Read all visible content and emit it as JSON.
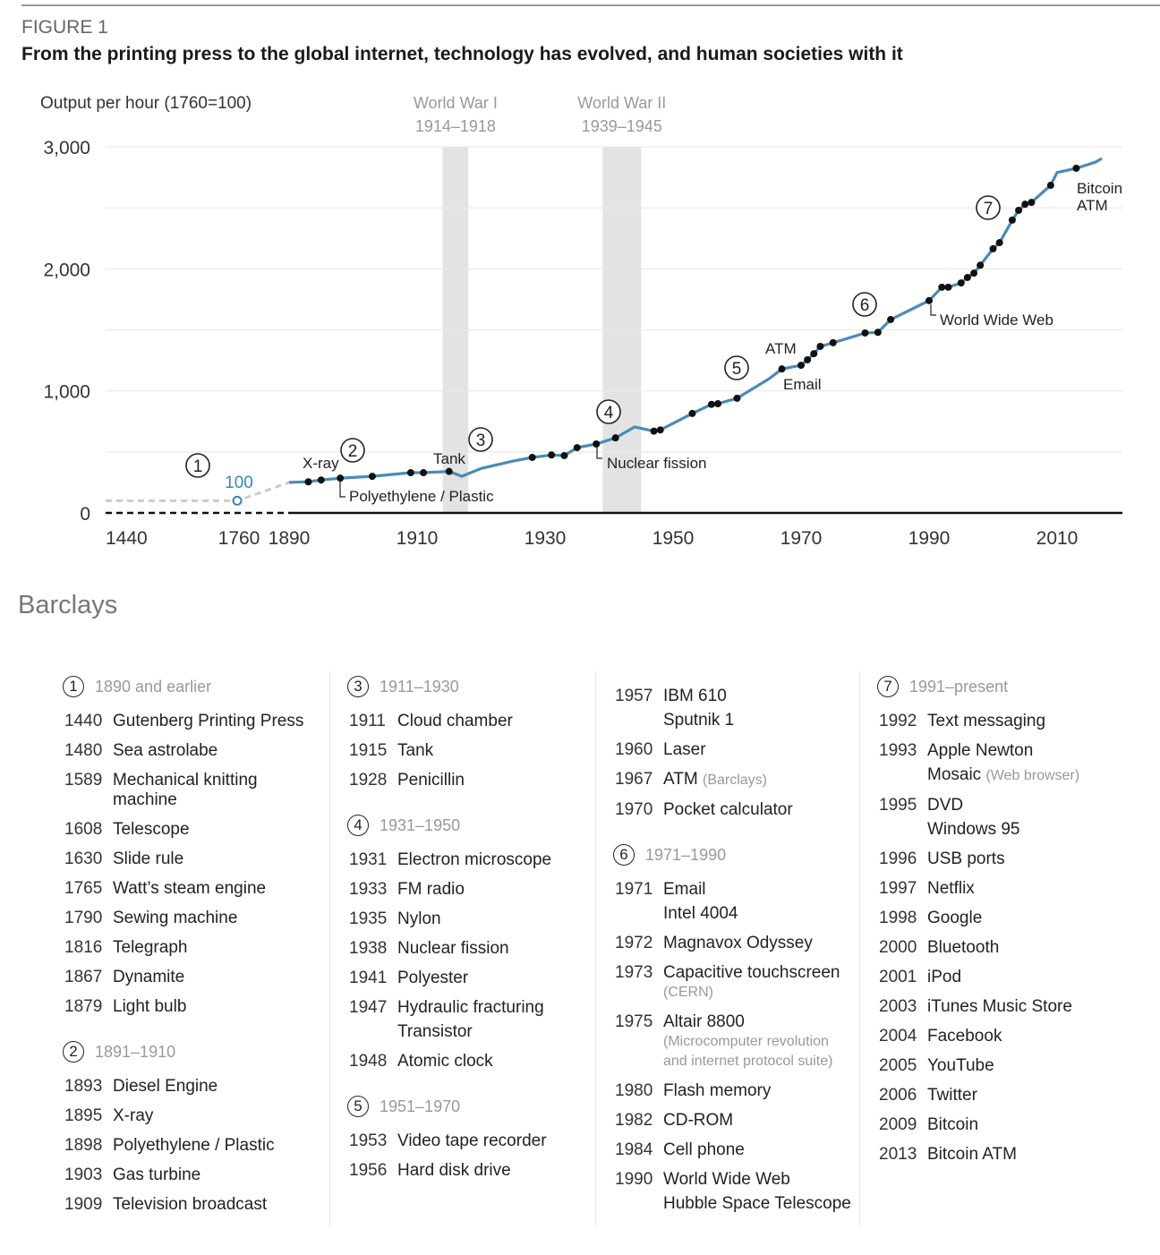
{
  "figure_label": "FIGURE 1",
  "title": "From the printing press to the global internet, technology has evolved, and human societies with it",
  "source": "Barclays",
  "chart_data": {
    "type": "line",
    "ylabel": "Output per hour (1760=100)",
    "ylim": [
      0,
      3000
    ],
    "yticks": [
      {
        "v": 0,
        "label": "0"
      },
      {
        "v": 1000,
        "label": "1,000"
      },
      {
        "v": 2000,
        "label": "2,000"
      },
      {
        "v": 3000,
        "label": "3,000"
      }
    ],
    "grid_step": 500,
    "grid": true,
    "xticks": [
      {
        "v": 1440,
        "label": "1440"
      },
      {
        "v": 1760,
        "label": "1760"
      },
      {
        "v": 1890,
        "label": "1890"
      },
      {
        "v": 1910,
        "label": "1910"
      },
      {
        "v": 1930,
        "label": "1930"
      },
      {
        "v": 1950,
        "label": "1950"
      },
      {
        "v": 1970,
        "label": "1970"
      },
      {
        "v": 1990,
        "label": "1990"
      },
      {
        "v": 2010,
        "label": "2010"
      }
    ],
    "x_axis_break": "compressed scale before 1890",
    "colors": {
      "line": "#4a8ab8",
      "pre_line": "#cccccc",
      "marker": "#111111",
      "band": "#e3e3e3",
      "base_label": "#3a86b8"
    },
    "bands": [
      {
        "name": "World War I",
        "period": "1914–1918",
        "from": 1914,
        "to": 1918
      },
      {
        "name": "World War II",
        "period": "1939–1945",
        "from": 1939,
        "to": 1945
      }
    ],
    "base_point": {
      "x": 1760,
      "y": 100,
      "label": "100"
    },
    "pre_series": [
      [
        1440,
        100
      ],
      [
        1760,
        100
      ],
      [
        1890,
        250
      ]
    ],
    "series": [
      [
        1890,
        250
      ],
      [
        1893,
        255
      ],
      [
        1895,
        270
      ],
      [
        1898,
        285
      ],
      [
        1903,
        300
      ],
      [
        1909,
        330
      ],
      [
        1911,
        330
      ],
      [
        1915,
        340
      ],
      [
        1917,
        300
      ],
      [
        1920,
        365
      ],
      [
        1925,
        425
      ],
      [
        1928,
        455
      ],
      [
        1931,
        475
      ],
      [
        1933,
        470
      ],
      [
        1935,
        535
      ],
      [
        1938,
        565
      ],
      [
        1941,
        615
      ],
      [
        1944,
        705
      ],
      [
        1947,
        670
      ],
      [
        1948,
        680
      ],
      [
        1953,
        815
      ],
      [
        1956,
        890
      ],
      [
        1957,
        895
      ],
      [
        1960,
        940
      ],
      [
        1965,
        1100
      ],
      [
        1967,
        1180
      ],
      [
        1970,
        1210
      ],
      [
        1971,
        1255
      ],
      [
        1972,
        1305
      ],
      [
        1973,
        1365
      ],
      [
        1975,
        1395
      ],
      [
        1980,
        1475
      ],
      [
        1982,
        1480
      ],
      [
        1984,
        1585
      ],
      [
        1990,
        1740
      ],
      [
        1992,
        1850
      ],
      [
        1993,
        1850
      ],
      [
        1995,
        1885
      ],
      [
        1996,
        1930
      ],
      [
        1997,
        1965
      ],
      [
        1998,
        2030
      ],
      [
        2000,
        2165
      ],
      [
        2001,
        2215
      ],
      [
        2003,
        2400
      ],
      [
        2004,
        2480
      ],
      [
        2005,
        2530
      ],
      [
        2006,
        2545
      ],
      [
        2009,
        2685
      ],
      [
        2010,
        2790
      ],
      [
        2013,
        2825
      ],
      [
        2016,
        2875
      ],
      [
        2017,
        2905
      ]
    ],
    "marker_years": [
      1893,
      1895,
      1898,
      1903,
      1909,
      1911,
      1915,
      1928,
      1931,
      1933,
      1935,
      1938,
      1941,
      1947,
      1948,
      1953,
      1956,
      1957,
      1960,
      1967,
      1970,
      1971,
      1972,
      1973,
      1975,
      1980,
      1982,
      1984,
      1990,
      1992,
      1993,
      1995,
      1996,
      1997,
      1998,
      2000,
      2001,
      2003,
      2004,
      2005,
      2006,
      2009,
      2013
    ],
    "annotations": [
      "X-ray",
      "Polyethylene / Plastic",
      "Tank",
      "Nuclear fission",
      "ATM",
      "Email",
      "World Wide Web",
      "Bitcoin",
      "ATM"
    ],
    "period_markers": [
      "1",
      "2",
      "3",
      "4",
      "5",
      "6",
      "7"
    ]
  },
  "legend": {
    "columns": [
      {
        "blocks": [
          {
            "num": "1",
            "period": "1890 and earlier",
            "items": [
              {
                "year": "1440",
                "name": "Gutenberg Printing Press"
              },
              {
                "year": "1480",
                "name": "Sea astrolabe"
              },
              {
                "year": "1589",
                "name": "Mechanical knitting machine"
              },
              {
                "year": "1608",
                "name": "Telescope"
              },
              {
                "year": "1630",
                "name": "Slide rule"
              },
              {
                "year": "1765",
                "name": "Watt’s steam engine"
              },
              {
                "year": "1790",
                "name": "Sewing machine"
              },
              {
                "year": "1816",
                "name": "Telegraph"
              },
              {
                "year": "1867",
                "name": "Dynamite"
              },
              {
                "year": "1879",
                "name": "Light bulb"
              }
            ]
          },
          {
            "num": "2",
            "period": "1891–1910",
            "items": [
              {
                "year": "1893",
                "name": "Diesel Engine"
              },
              {
                "year": "1895",
                "name": "X-ray"
              },
              {
                "year": "1898",
                "name": "Polyethylene / Plastic"
              },
              {
                "year": "1903",
                "name": "Gas turbine"
              },
              {
                "year": "1909",
                "name": "Television broadcast"
              }
            ]
          }
        ]
      },
      {
        "blocks": [
          {
            "num": "3",
            "period": "1911–1930",
            "items": [
              {
                "year": "1911",
                "name": "Cloud chamber"
              },
              {
                "year": "1915",
                "name": "Tank"
              },
              {
                "year": "1928",
                "name": "Penicillin"
              }
            ]
          },
          {
            "num": "4",
            "period": "1931–1950",
            "items": [
              {
                "year": "1931",
                "name": "Electron microscope"
              },
              {
                "year": "1933",
                "name": "FM radio"
              },
              {
                "year": "1935",
                "name": "Nylon"
              },
              {
                "year": "1938",
                "name": "Nuclear fission"
              },
              {
                "year": "1941",
                "name": "Polyester"
              },
              {
                "year": "1947",
                "name": "Hydraulic fracturing"
              },
              {
                "year": "",
                "name": "Transistor"
              },
              {
                "year": "1948",
                "name": "Atomic clock"
              }
            ]
          },
          {
            "num": "5",
            "period": "1951–1970",
            "items": [
              {
                "year": "1953",
                "name": "Video tape recorder"
              },
              {
                "year": "1956",
                "name": "Hard disk drive"
              }
            ]
          }
        ]
      },
      {
        "blocks": [
          {
            "num": "",
            "period": "",
            "items": [
              {
                "year": "1957",
                "name": "IBM 610"
              },
              {
                "year": "",
                "name": "Sputnik 1"
              },
              {
                "year": "1960",
                "name": "Laser"
              },
              {
                "year": "1967",
                "name": "ATM",
                "note": "(Barclays)"
              },
              {
                "year": "1970",
                "name": "Pocket calculator"
              }
            ]
          },
          {
            "num": "6",
            "period": "1971–1990",
            "items": [
              {
                "year": "1971",
                "name": "Email"
              },
              {
                "year": "",
                "name": "Intel 4004"
              },
              {
                "year": "1972",
                "name": "Magnavox Odyssey"
              },
              {
                "year": "1973",
                "name": "Capacitive touchscreen",
                "subnote": "(CERN)"
              },
              {
                "year": "1975",
                "name": "Altair 8800",
                "subnote": "(Microcomputer revolution and internet protocol suite)"
              },
              {
                "year": "1980",
                "name": "Flash memory"
              },
              {
                "year": "1982",
                "name": "CD-ROM"
              },
              {
                "year": "1984",
                "name": "Cell phone"
              },
              {
                "year": "1990",
                "name": "World Wide Web"
              },
              {
                "year": "",
                "name": "Hubble Space Telescope"
              }
            ]
          }
        ]
      },
      {
        "blocks": [
          {
            "num": "7",
            "period": "1991–present",
            "items": [
              {
                "year": "1992",
                "name": "Text messaging"
              },
              {
                "year": "1993",
                "name": "Apple Newton"
              },
              {
                "year": "",
                "name": "Mosaic",
                "note": "(Web browser)"
              },
              {
                "year": "1995",
                "name": "DVD"
              },
              {
                "year": "",
                "name": "Windows 95"
              },
              {
                "year": "1996",
                "name": "USB ports"
              },
              {
                "year": "1997",
                "name": "Netflix"
              },
              {
                "year": "1998",
                "name": "Google"
              },
              {
                "year": "2000",
                "name": "Bluetooth"
              },
              {
                "year": "2001",
                "name": "iPod"
              },
              {
                "year": "2003",
                "name": "iTunes Music Store"
              },
              {
                "year": "2004",
                "name": "Facebook"
              },
              {
                "year": "2005",
                "name": "YouTube"
              },
              {
                "year": "2006",
                "name": "Twitter"
              },
              {
                "year": "2009",
                "name": "Bitcoin"
              },
              {
                "year": "2013",
                "name": "Bitcoin ATM"
              }
            ]
          }
        ]
      }
    ]
  }
}
